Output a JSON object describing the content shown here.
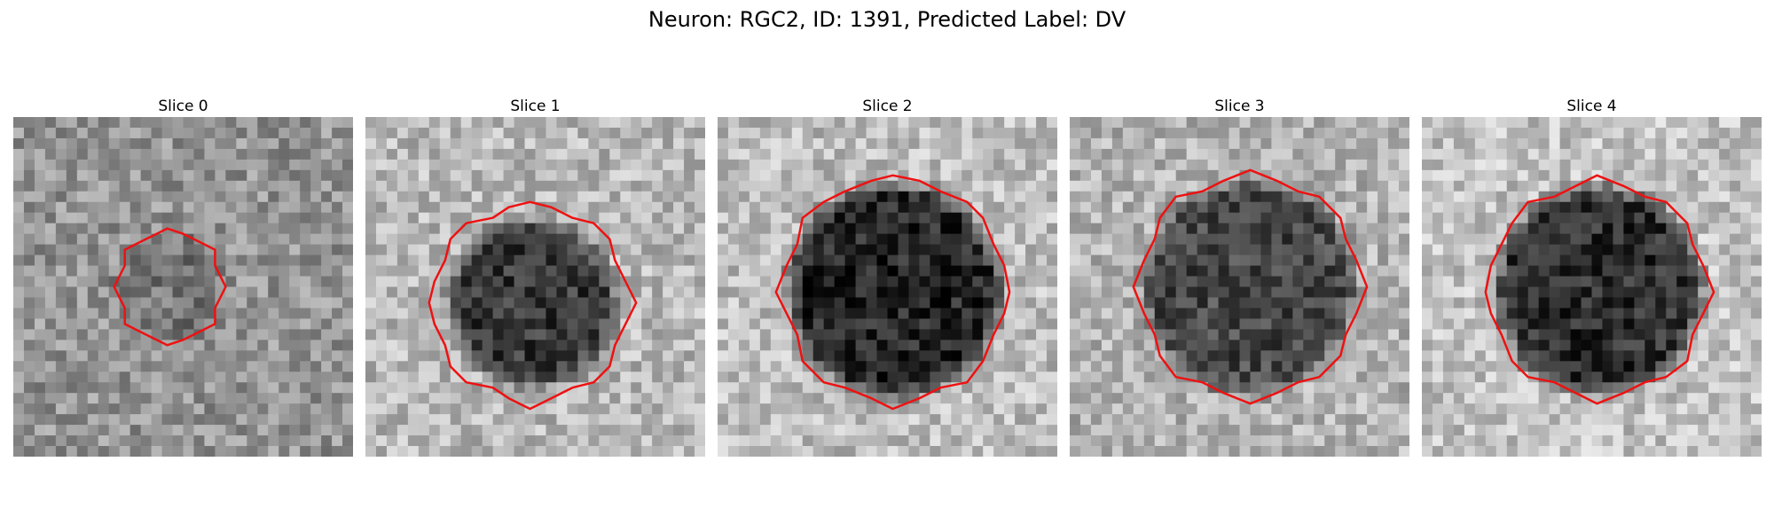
{
  "figure": {
    "title": "Neuron: RGC2, ID: 1391, Predicted Label: DV"
  },
  "contour_color": "#ee1111",
  "slices": [
    {
      "title": "Slice 0",
      "cell_radius": 0.16,
      "contour_radius": 0.16,
      "contour_cx": 0.46,
      "contour_cy": 0.5,
      "bg_mean": 0.58,
      "cell_mean": 0.46,
      "seed": 11
    },
    {
      "title": "Slice 1",
      "cell_radius": 0.24,
      "contour_radius": 0.29,
      "contour_cx": 0.49,
      "contour_cy": 0.55,
      "bg_mean": 0.72,
      "cell_mean": 0.22,
      "seed": 23
    },
    {
      "title": "Slice 2",
      "cell_radius": 0.31,
      "contour_radius": 0.33,
      "contour_cx": 0.52,
      "contour_cy": 0.51,
      "bg_mean": 0.74,
      "cell_mean": 0.15,
      "seed": 37
    },
    {
      "title": "Slice 3",
      "cell_radius": 0.31,
      "contour_radius": 0.33,
      "contour_cx": 0.53,
      "contour_cy": 0.5,
      "bg_mean": 0.7,
      "cell_mean": 0.28,
      "seed": 53
    },
    {
      "title": "Slice 4",
      "cell_radius": 0.3,
      "contour_radius": 0.32,
      "contour_cx": 0.52,
      "contour_cy": 0.51,
      "bg_mean": 0.76,
      "cell_mean": 0.18,
      "seed": 71
    }
  ]
}
